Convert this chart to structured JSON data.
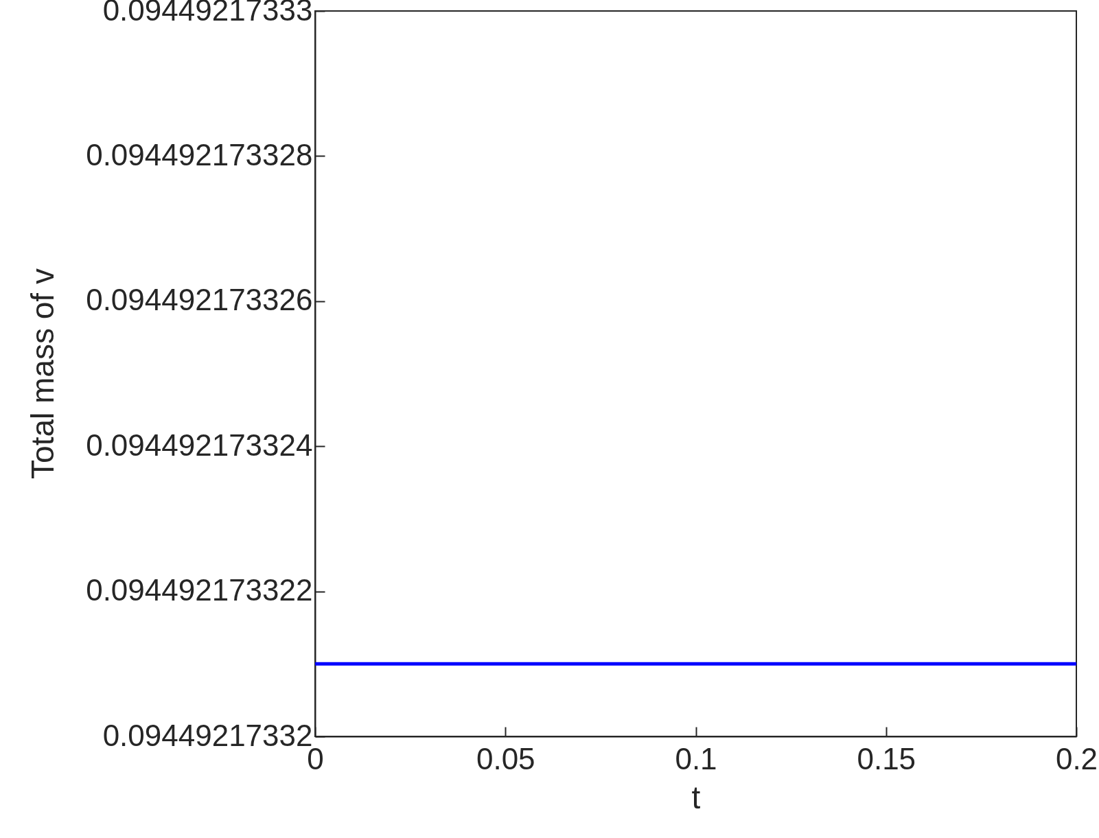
{
  "chart_data": {
    "type": "line",
    "xlabel": "t",
    "ylabel": "Total mass of v",
    "x": [
      0,
      0.2
    ],
    "series": [
      {
        "color": "#0000ff",
        "values": [
          0.094492173321,
          0.094492173321
        ]
      }
    ],
    "xlim": [
      0,
      0.2
    ],
    "xticks": [
      0,
      0.05,
      0.1,
      0.15,
      0.2
    ],
    "ylim": [
      0.09449217332,
      0.09449217333
    ],
    "yticks": [
      0.09449217332,
      0.094492173322,
      0.094492173324,
      0.094492173326,
      0.094492173328,
      0.09449217333
    ],
    "grid": false
  }
}
